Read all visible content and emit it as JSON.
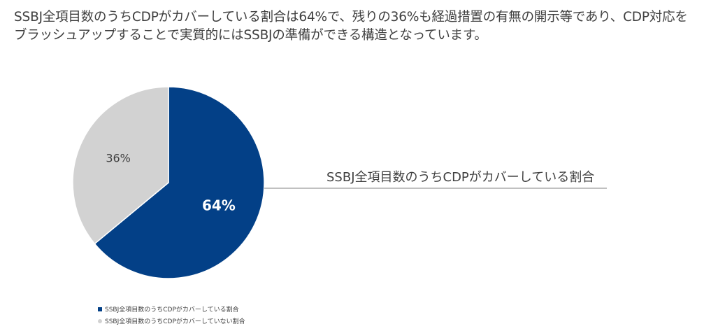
{
  "headline": {
    "line1": "SSBJ全項目数のうちCDPがカバーしている割合は64%で、残りの36%も経過措置の有無の開示等であり、CDP対応を",
    "line2": "ブラッシュアップすることで実質的にはSSBJの準備ができる構造となっています。"
  },
  "chart_data": {
    "type": "pie",
    "title": "",
    "slices": [
      {
        "name": "SSBJ全項目数のうちCDPがカバーしている割合",
        "value": 64,
        "label": "64%",
        "color": "#034087",
        "label_color": "#ffffff",
        "bold": true
      },
      {
        "name": "SSBJ全項目数のうちCDPがカバーしていない割合",
        "value": 36,
        "label": "36%",
        "color": "#d2d2d2",
        "label_color": "#404040",
        "bold": false
      }
    ],
    "callout": "SSBJ全項目数のうちCDPがカバーしている割合",
    "legend": {
      "position": "bottom-left",
      "entries": [
        {
          "label": "SSBJ全項目数のうちCDPがカバーしている割合",
          "color": "#034087",
          "marker": "square"
        },
        {
          "label": "SSBJ全項目数のうちCDPがカバーしていない割合",
          "color": "#d2d2d2",
          "marker": "circle"
        }
      ]
    }
  }
}
